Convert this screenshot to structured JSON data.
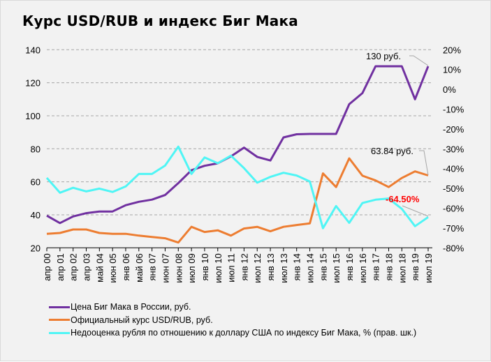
{
  "title": "Курс USD/RUB и индекс Биг Мака",
  "colors": {
    "background": "#f2f2f2",
    "big_mac": "#7030a0",
    "usd_rub": "#ed7d31",
    "undervaluation": "#4ff5f5",
    "annotation_red": "#ff0000",
    "grid": "#a6a6a6"
  },
  "annotations": {
    "big_mac_last": "130 руб.",
    "usd_rub_last": "63.84 руб.",
    "undervaluation_last": "-64.50%"
  },
  "legend": [
    {
      "key": "big_mac",
      "label": "Цена Биг Мака в России, руб."
    },
    {
      "key": "usd_rub",
      "label": "Официальный  курс USD/RUB, руб."
    },
    {
      "key": "undervaluation",
      "label": "Недооценка  рубля по отношению к доллару США по индексу  Биг Мака, % (прав. шк.)"
    }
  ],
  "chart_data": {
    "type": "line",
    "title": "Курс USD/RUB и индекс Биг Мака",
    "xlabel": "",
    "ylabel": "",
    "categories": [
      "апр 00",
      "апр 01",
      "апр 02",
      "апр 03",
      "май 04",
      "июн 05",
      "янв 06",
      "май 06",
      "янв 07",
      "июн 07",
      "июн 08",
      "июл 09",
      "янв 10",
      "июл 10",
      "июл 11",
      "янв 12",
      "июл 12",
      "янв 13",
      "июл 13",
      "янв 14",
      "июл 14",
      "янв 15",
      "июл 15",
      "янв 16",
      "июл 16",
      "янв 17",
      "янв 18",
      "июл 18",
      "янв 19",
      "июл 19"
    ],
    "ylim": [
      20,
      140
    ],
    "yticks": [
      "140",
      "120",
      "100",
      "80",
      "60",
      "40",
      "20"
    ],
    "y2lim": [
      -80,
      20
    ],
    "y2ticks": [
      "20%",
      "10%",
      "0%",
      "-10%",
      "-20%",
      "-30%",
      "-40%",
      "-50%",
      "-60%",
      "-70%",
      "-80%"
    ],
    "grid": true,
    "legend_position": "bottom",
    "series": [
      {
        "name": "Цена Биг Мака в России, руб.",
        "axis": "left",
        "values": [
          39.5,
          35,
          39,
          41,
          42,
          42,
          45.8,
          47.9,
          49.2,
          52,
          59.2,
          67,
          69.7,
          71.2,
          75.4,
          80.7,
          75.1,
          72.9,
          86.9,
          88.8,
          89,
          89,
          89,
          107,
          113.7,
          130,
          130,
          130,
          110,
          130
        ]
      },
      {
        "name": "Официальный курс USD/RUB, руб.",
        "axis": "left",
        "values": [
          28.5,
          29,
          31.1,
          31.1,
          29,
          28.5,
          28.5,
          27.4,
          26.6,
          25.8,
          23.2,
          32.7,
          29.6,
          30.6,
          27.4,
          31.7,
          32.7,
          30,
          32.7,
          33.8,
          34.8,
          65.1,
          56.8,
          74.2,
          63.7,
          60.8,
          56.8,
          62.3,
          66.3,
          63.84
        ]
      },
      {
        "name": "Недооценка рубля по отношению к доллару США по индексу Биг Мака, % (прав. шк.)",
        "axis": "right",
        "values": [
          -44.7,
          -52.2,
          -49.7,
          -51.5,
          -50.1,
          -51.8,
          -49,
          -42.7,
          -42.7,
          -38.5,
          -28.9,
          -42.7,
          -34.4,
          -37.3,
          -33.5,
          -39.8,
          -47.1,
          -44.2,
          -42.1,
          -43.5,
          -46.5,
          -70.1,
          -58.9,
          -67.4,
          -57.4,
          -55.7,
          -55.1,
          -60.3,
          -69.1,
          -64.5
        ]
      }
    ]
  }
}
